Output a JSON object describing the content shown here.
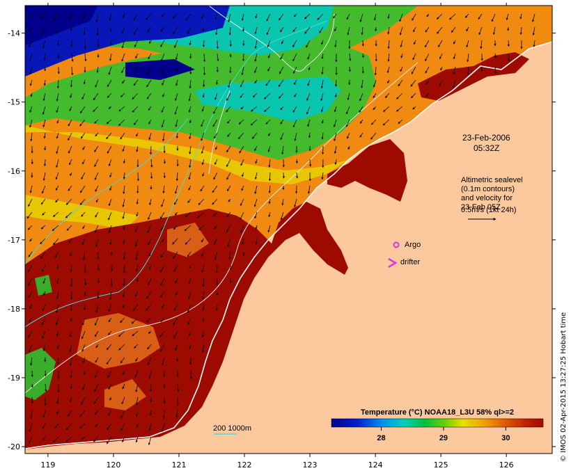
{
  "map": {
    "lon_ticks": [
      "119",
      "120",
      "121",
      "122",
      "123",
      "124",
      "125",
      "126"
    ],
    "lat_ticks": [
      "-14",
      "-15",
      "-16",
      "-17",
      "-18",
      "-19",
      "-20"
    ],
    "lon_range": [
      118.65,
      126.7
    ],
    "lat_range": [
      -20.1,
      -13.6
    ]
  },
  "annotations": {
    "date_line1": "23-Feb-2006",
    "date_line2": "05:32Z",
    "alt_lines": [
      "Altimetric sealevel",
      "(0.1m contours)",
      "and velocity for",
      "23-Feb 05Z",
      "0.5m/s (1kt 24h)"
    ],
    "argo_label": "Argo",
    "drifter_label": "drifter",
    "depth_label": "200  1000m"
  },
  "colorbar": {
    "title": "Temperature (°C) NOAA18_L3U 58% ql>=2",
    "ticks": [
      "28",
      "29",
      "30"
    ],
    "tick_values": [
      28,
      29,
      30
    ],
    "range": [
      27.2,
      30.6
    ]
  },
  "credit": "© IMOS 02-Apr-2015 13:27:25 Hobart time",
  "colors": {
    "land": "#fbc99d",
    "hot": "#9c0a00",
    "cold": "#00008c",
    "contour": "#e8e8e8",
    "isobath": "#4fd8d8",
    "argo": "#e030e0",
    "drifter": "#e030e0"
  }
}
